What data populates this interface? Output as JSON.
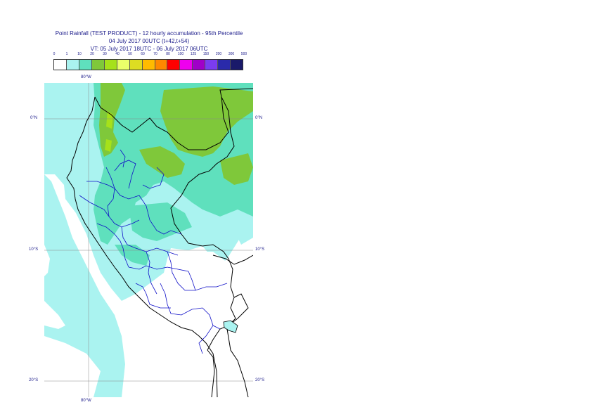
{
  "title": {
    "line1": "Point Rainfall (TEST PRODUCT) - 12 hourly accumulation - 95th Percentile",
    "line2": "04 July 2017 00UTC (t+42,t+54)",
    "line3": "VT: 05 July 2017 18UTC - 06 July 2017 06UTC"
  },
  "legend": {
    "labels": [
      "0",
      "1",
      "10",
      "20",
      "30",
      "40",
      "50",
      "60",
      "70",
      "80",
      "100",
      "125",
      "150",
      "200",
      "300",
      "500"
    ],
    "colors": [
      "#ffffff",
      "#aaf3f0",
      "#5fe0bd",
      "#7fc83a",
      "#a6e11a",
      "#eaff6a",
      "#dddd22",
      "#ffbb00",
      "#ff8800",
      "#ff0000",
      "#ee00ee",
      "#a000c8",
      "#7a3cf0",
      "#2a2aaa",
      "#1a1a6a"
    ]
  },
  "map": {
    "lat_labels": {
      "lat_0_left": "0°N",
      "lat_0_right": "0°N",
      "lat_10_left": "10°S",
      "lat_10_right": "10°S",
      "lat_20_left": "20°S",
      "lat_20_right": "20°S"
    },
    "lon_labels": {
      "lon_80_top": "80°W",
      "lon_80_bottom": "80°W"
    }
  }
}
